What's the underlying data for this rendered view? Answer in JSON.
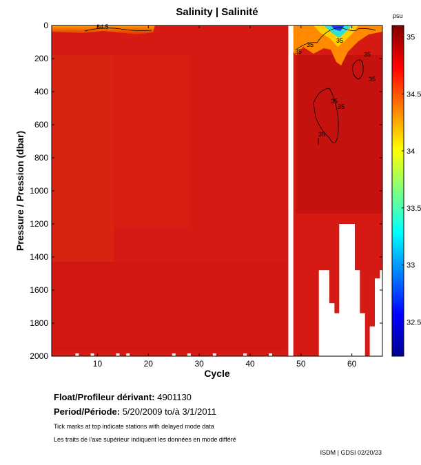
{
  "chart_data": {
    "type": "heatmap",
    "title": "Salinity | Salinité",
    "xlabel": "Cycle",
    "ylabel": "Pressure / Pression (dbar)",
    "xlim": [
      1,
      66
    ],
    "ylim": [
      2000,
      0
    ],
    "x_ticks": [
      10,
      20,
      30,
      40,
      50,
      60
    ],
    "y_ticks": [
      0,
      200,
      400,
      600,
      800,
      1000,
      1200,
      1400,
      1600,
      1800,
      2000
    ],
    "colorbar": {
      "unit": "psu",
      "range": [
        32.2,
        35.1
      ],
      "ticks": [
        "35",
        "34.5",
        "34",
        "33.5",
        "33",
        "32.5"
      ],
      "tick_values": [
        35,
        34.5,
        34,
        33.5,
        33,
        32.5
      ],
      "colormap": "jet"
    },
    "gap_cycle": 48,
    "contour_labels": [
      "34.5",
      "35",
      "35",
      "35",
      "35",
      "35",
      "35",
      "35",
      "35"
    ],
    "profile_max_depth": [
      {
        "cycle": 54,
        "pressure": 1480
      },
      {
        "cycle": 55,
        "pressure": 1480
      },
      {
        "cycle": 56,
        "pressure": 1680
      },
      {
        "cycle": 57,
        "pressure": 1740
      },
      {
        "cycle": 58,
        "pressure": 1200
      },
      {
        "cycle": 59,
        "pressure": 1200
      },
      {
        "cycle": 60,
        "pressure": 1200
      },
      {
        "cycle": 61,
        "pressure": 1480
      },
      {
        "cycle": 62,
        "pressure": 1740
      },
      {
        "cycle": 63,
        "pressure": 2000
      },
      {
        "cycle": 64,
        "pressure": 1820
      },
      {
        "cycle": 65,
        "pressure": 1530
      },
      {
        "cycle": 66,
        "pressure": 1480
      }
    ],
    "delayed_mode_ticks": [
      6,
      9,
      14,
      16,
      25,
      28,
      33,
      39,
      44
    ]
  },
  "info": {
    "float_label": "Float/Profileur dérivant:",
    "float_value": "4901130",
    "period_label": "Period/Période:",
    "period_value": "5/20/2009  to/à  3/1/2011",
    "note_en": "Tick marks at top indicate stations with delayed mode data",
    "note_fr": "Les traits de l'axe supérieur indiquent les données en mode différé",
    "credit": "ISDM | GDSI  02/20/23"
  }
}
